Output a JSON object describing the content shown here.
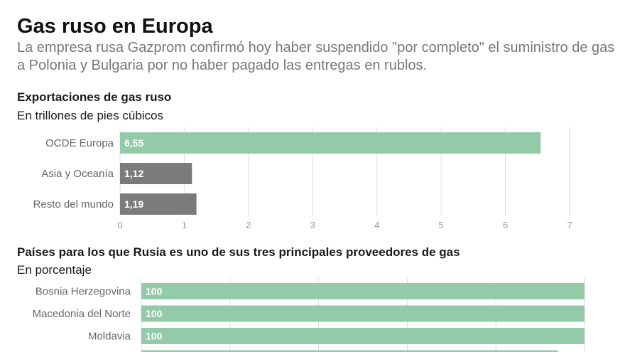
{
  "header": {
    "title": "Gas ruso en Europa",
    "subtitle": "La empresa rusa Gazprom confirmó hoy haber suspendido \"por completo\" el suministro de gas a Polonia y Bulgaria por no haber pagado las entregas en rublos."
  },
  "chart_data": [
    {
      "type": "bar",
      "orientation": "horizontal",
      "title": "Exportaciones de gas ruso",
      "subtitle": "En trillones de pies cúbicos",
      "categories": [
        "OCDE Europa",
        "Asia y Oceanía",
        "Resto del mundo"
      ],
      "values": [
        6.55,
        1.12,
        1.19
      ],
      "value_labels": [
        "6,55",
        "1,12",
        "1,19"
      ],
      "colors": [
        "#93cba8",
        "#7b7b7b",
        "#7b7b7b"
      ],
      "xlim": [
        0,
        7
      ],
      "xticks": [
        0,
        1,
        2,
        3,
        4,
        5,
        6,
        7
      ],
      "grid": true
    },
    {
      "type": "bar",
      "orientation": "horizontal",
      "title": "Países para los que Rusia es uno de sus tres principales proveedores de gas",
      "subtitle": "En porcentaje",
      "categories": [
        "Bosnia Herzegovina",
        "Macedonia del Norte",
        "Moldavia",
        ""
      ],
      "values": [
        100,
        100,
        100,
        94
      ],
      "value_labels": [
        "100",
        "100",
        "100",
        ""
      ],
      "colors": [
        "#93cba8",
        "#93cba8",
        "#93cba8",
        "#93cba8"
      ],
      "xlim": [
        0,
        100
      ],
      "grid": true
    }
  ]
}
